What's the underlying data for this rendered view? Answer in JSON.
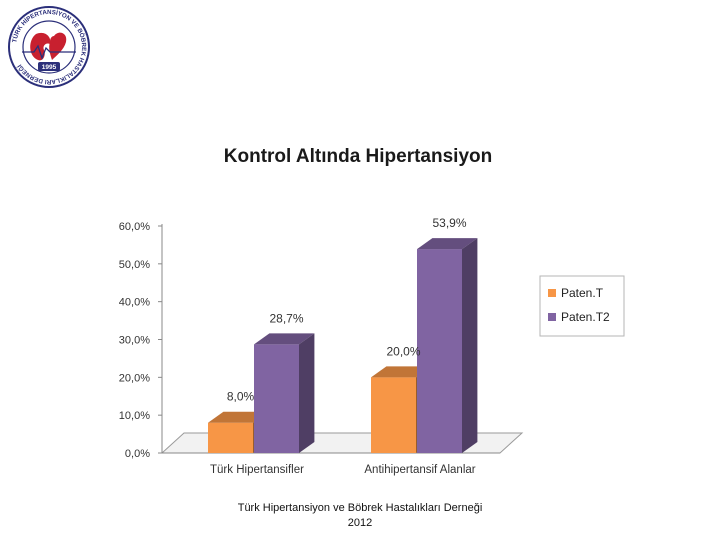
{
  "logo": {
    "ring_text": "TÜRK HİPERTANSİYON VE BÖBREK HASTALIKLARI DERNEĞİ",
    "year": "1995"
  },
  "footer": {
    "line1": "Türk Hipertansiyon ve Böbrek Hastalıkları Derneği",
    "line2": "2012"
  },
  "chart_data": {
    "type": "bar",
    "title": "Kontrol Altında Hipertansiyon",
    "categories": [
      "Türk Hipertansifler",
      "Antihipertansif Alanlar"
    ],
    "series": [
      {
        "name": "Paten.T",
        "values": [
          8.0,
          20.0
        ],
        "labels": [
          "8,0%",
          "20,0%"
        ],
        "color": "#f79646"
      },
      {
        "name": "Paten.T2",
        "values": [
          28.7,
          53.9
        ],
        "labels": [
          "28,7%",
          "53,9%"
        ],
        "color": "#8064a2"
      }
    ],
    "yticks": [
      "0,0%",
      "10,0%",
      "20,0%",
      "30,0%",
      "40,0%",
      "50,0%",
      "60,0%"
    ],
    "ylim": [
      0,
      60
    ],
    "legend_position": "right",
    "grid": false
  }
}
